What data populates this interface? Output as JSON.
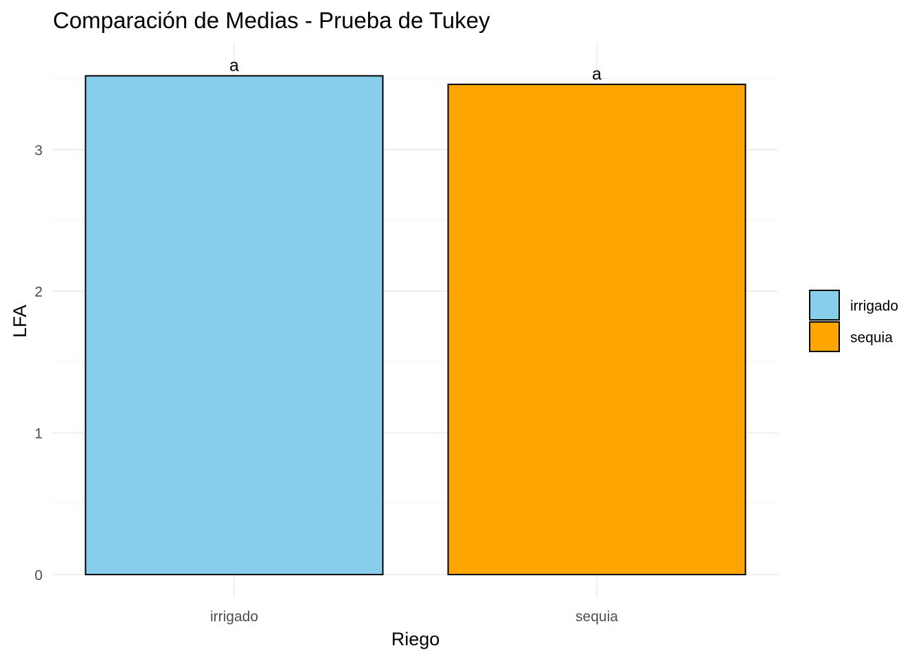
{
  "chart_data": {
    "type": "bar",
    "title": "Comparación de Medias - Prueba de Tukey",
    "xlabel": "Riego",
    "ylabel": "LFA",
    "categories": [
      "irrigado",
      "sequia"
    ],
    "values": [
      3.52,
      3.46
    ],
    "group_letters": [
      "a",
      "a"
    ],
    "colors": [
      "#87ceeb",
      "#ffa500"
    ],
    "ylim": [
      0,
      3.55
    ],
    "yticks": [
      0,
      1,
      2,
      3
    ],
    "grid": true,
    "legend": {
      "placement": "right",
      "entries": [
        "irrigado",
        "sequia"
      ]
    }
  }
}
